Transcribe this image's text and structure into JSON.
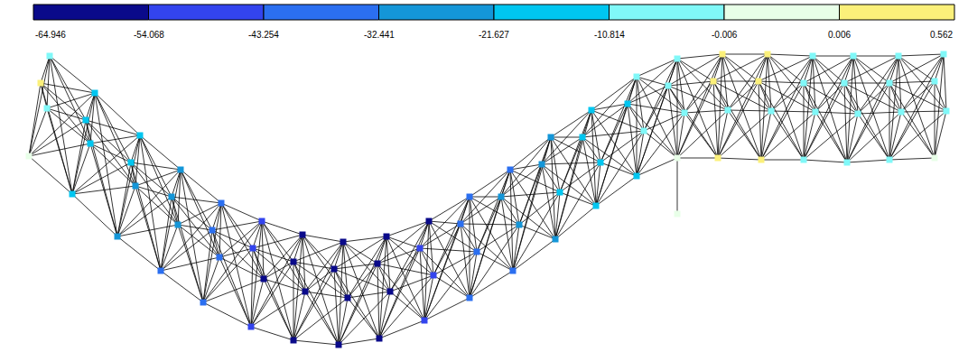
{
  "chart_data": {
    "type": "network",
    "tick_labels": false,
    "xlim": [
      0,
      1072
    ],
    "ylim": [
      0,
      345
    ],
    "panels": [
      [
        [
          55,
          328,
          -5
        ],
        [
          45,
          298,
          0.3
        ],
        [
          52,
          270,
          -8
        ],
        [
          32,
          217,
          -0.003
        ]
      ],
      [
        [
          105,
          287,
          -12
        ],
        [
          95,
          257,
          -11
        ],
        [
          100,
          231,
          -14
        ],
        [
          80,
          175,
          -13
        ]
      ],
      [
        [
          155,
          240,
          -20
        ],
        [
          145,
          210,
          -18
        ],
        [
          150,
          184,
          -23
        ],
        [
          130,
          128,
          -22
        ]
      ],
      [
        [
          200,
          202,
          -28
        ],
        [
          190,
          172,
          -26
        ],
        [
          197,
          141,
          -30
        ],
        [
          178,
          90,
          -33
        ]
      ],
      [
        [
          245,
          165,
          -38
        ],
        [
          235,
          135,
          -36
        ],
        [
          243,
          105,
          -40
        ],
        [
          225,
          55,
          -42
        ]
      ],
      [
        [
          290,
          145,
          -48
        ],
        [
          280,
          115,
          -50
        ],
        [
          292,
          81,
          -55
        ],
        [
          278,
          28,
          -46
        ]
      ],
      [
        [
          335,
          130,
          -58
        ],
        [
          325,
          100,
          -60
        ],
        [
          338,
          67,
          -57
        ],
        [
          325,
          13,
          -56
        ]
      ],
      [
        [
          380,
          122,
          -62
        ],
        [
          370,
          92,
          -64
        ],
        [
          385,
          60,
          -63
        ],
        [
          375,
          8,
          -64.9
        ]
      ],
      [
        [
          428,
          128,
          -60
        ],
        [
          418,
          98,
          -62
        ],
        [
          432,
          67,
          -59
        ],
        [
          420,
          15,
          -58
        ]
      ],
      [
        [
          475,
          145,
          -55
        ],
        [
          465,
          115,
          -50
        ],
        [
          480,
          85,
          -52
        ],
        [
          470,
          35,
          -47
        ]
      ],
      [
        [
          520,
          172,
          -42
        ],
        [
          510,
          142,
          -40
        ],
        [
          528,
          111,
          -38
        ],
        [
          520,
          60,
          -35
        ]
      ],
      [
        [
          565,
          202,
          -33
        ],
        [
          555,
          172,
          -30
        ],
        [
          575,
          141,
          -28
        ],
        [
          568,
          90,
          -36
        ]
      ],
      [
        [
          610,
          238,
          -25
        ],
        [
          600,
          208,
          -22
        ],
        [
          620,
          177,
          -20
        ],
        [
          615,
          125,
          -23
        ]
      ],
      [
        [
          655,
          268,
          -15
        ],
        [
          645,
          238,
          -18
        ],
        [
          665,
          210,
          -14
        ],
        [
          660,
          162,
          -16
        ]
      ],
      [
        [
          705,
          305,
          -10
        ],
        [
          695,
          275,
          -12
        ],
        [
          713,
          245,
          -9
        ],
        [
          705,
          195,
          -11
        ]
      ],
      [
        [
          750,
          325,
          -5
        ],
        [
          740,
          295,
          -3
        ],
        [
          758,
          265,
          -7
        ],
        [
          750,
          215,
          -0.004
        ]
      ],
      [
        [
          800,
          330,
          0.4
        ],
        [
          790,
          300,
          0.5
        ],
        [
          806,
          268,
          -2
        ],
        [
          795,
          215,
          0.3
        ]
      ],
      [
        [
          850,
          330,
          0.5
        ],
        [
          840,
          300,
          0.3
        ],
        [
          854,
          267,
          -1
        ],
        [
          843,
          213,
          0.2
        ]
      ],
      [
        [
          900,
          328,
          -4
        ],
        [
          890,
          298,
          -2
        ],
        [
          903,
          266,
          -6
        ],
        [
          890,
          213,
          -8
        ]
      ],
      [
        [
          945,
          328,
          -5
        ],
        [
          935,
          298,
          -3
        ],
        [
          950,
          264,
          -7
        ],
        [
          938,
          210,
          -9
        ]
      ],
      [
        [
          995,
          328,
          -4
        ],
        [
          985,
          298,
          -2
        ],
        [
          998,
          266,
          -6
        ],
        [
          985,
          213,
          -8
        ]
      ],
      [
        [
          1045,
          330,
          -3
        ],
        [
          1035,
          300,
          -2
        ],
        [
          1048,
          267,
          -5
        ],
        [
          1035,
          215,
          -0.002
        ]
      ]
    ],
    "supports": [
      {
        "panel": 16,
        "node": [
          750,
          153,
          -0.001
        ]
      }
    ],
    "colorbar": {
      "ticks": [
        -64.946,
        -54.068,
        -43.254,
        -32.441,
        -21.627,
        -10.814,
        -0.006,
        0.006,
        0.562
      ],
      "colors": [
        "#0a0a8a",
        "#3344ee",
        "#2b6ff0",
        "#1496d8",
        "#00c6f0",
        "#80f8f8",
        "#e8ffe8",
        "#fbf07a"
      ]
    }
  }
}
